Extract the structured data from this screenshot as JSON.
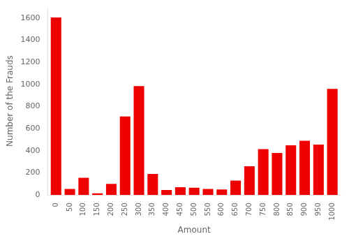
{
  "chart_data": {
    "type": "bar",
    "x": [
      0,
      50,
      100,
      150,
      200,
      250,
      300,
      350,
      400,
      450,
      500,
      550,
      600,
      650,
      700,
      750,
      800,
      850,
      900,
      950,
      1000
    ],
    "values": [
      1605,
      55,
      155,
      15,
      100,
      710,
      985,
      190,
      45,
      70,
      65,
      55,
      50,
      130,
      260,
      415,
      380,
      450,
      490,
      455,
      960
    ],
    "color": "#ee0000",
    "xlabel": "Amount",
    "ylabel": "Number of the Frauds",
    "xlim": [
      -30,
      1030
    ],
    "xticks": [
      0,
      50,
      100,
      150,
      200,
      250,
      300,
      350,
      400,
      450,
      500,
      550,
      600,
      650,
      700,
      750,
      800,
      850,
      900,
      950,
      1000
    ],
    "ylim": [
      0,
      1700
    ],
    "yticks": [
      0,
      200,
      400,
      600,
      800,
      1000,
      1200,
      1400,
      1600
    ],
    "grid": false
  }
}
